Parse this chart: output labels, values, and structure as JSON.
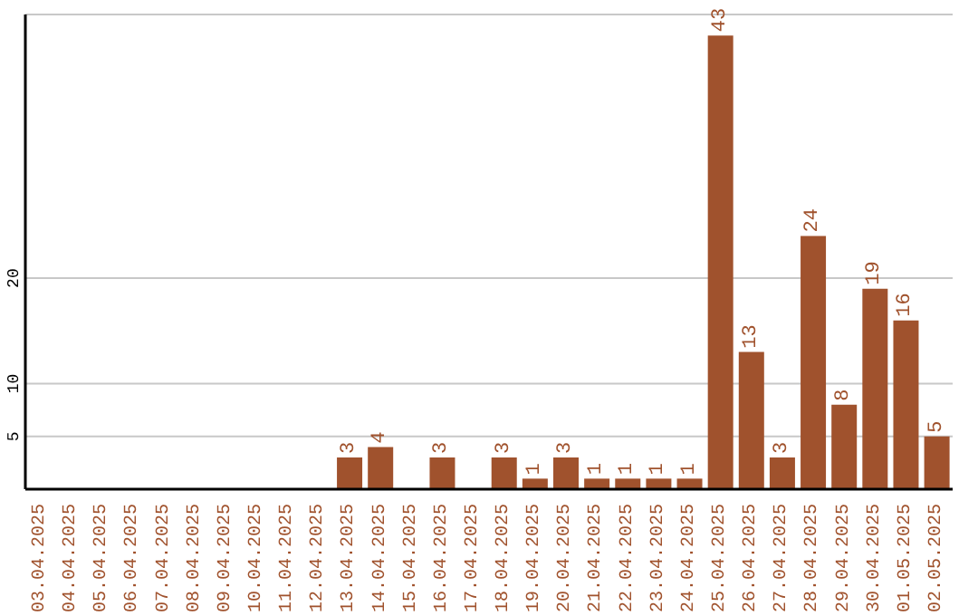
{
  "chart_data": {
    "type": "bar",
    "categories": [
      "03.04.2025",
      "04.04.2025",
      "05.04.2025",
      "06.04.2025",
      "07.04.2025",
      "08.04.2025",
      "09.04.2025",
      "10.04.2025",
      "11.04.2025",
      "12.04.2025",
      "13.04.2025",
      "14.04.2025",
      "15.04.2025",
      "16.04.2025",
      "17.04.2025",
      "18.04.2025",
      "19.04.2025",
      "20.04.2025",
      "21.04.2025",
      "22.04.2025",
      "23.04.2025",
      "24.04.2025",
      "25.04.2025",
      "26.04.2025",
      "27.04.2025",
      "28.04.2025",
      "29.04.2025",
      "30.04.2025",
      "01.05.2025",
      "02.05.2025"
    ],
    "values": [
      null,
      null,
      null,
      null,
      null,
      null,
      null,
      null,
      null,
      null,
      3,
      4,
      null,
      3,
      null,
      3,
      1,
      3,
      1,
      1,
      1,
      1,
      43,
      13,
      3,
      24,
      8,
      19,
      16,
      5
    ],
    "color": "#a0522d",
    "ylim": [
      0,
      45
    ],
    "yticks": [
      5,
      10,
      20
    ],
    "grid": "y",
    "data_labels": true
  }
}
